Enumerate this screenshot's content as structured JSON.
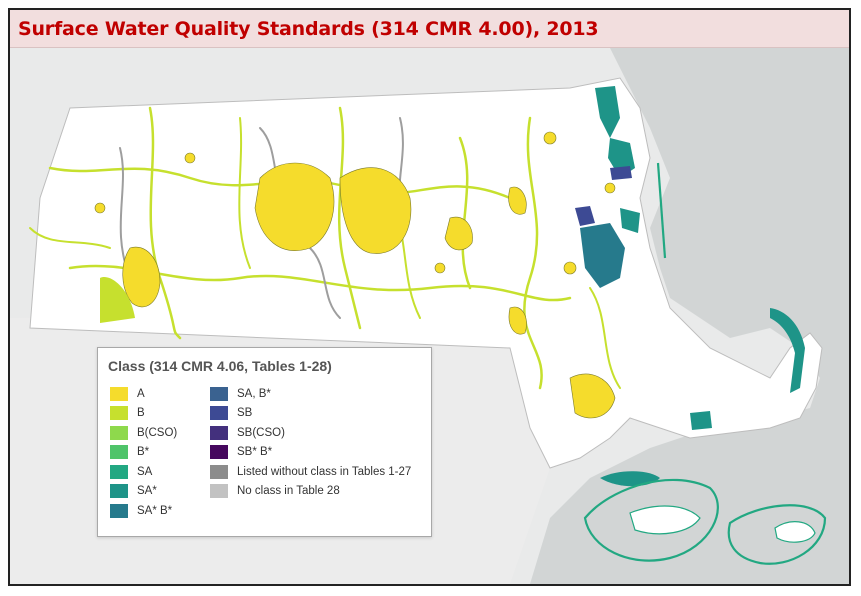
{
  "title": "Surface Water Quality Standards (314 CMR 4.00), 2013",
  "colors": {
    "title_text": "#c00000",
    "title_bg": "#f2dede",
    "land": "#f7f7f7",
    "state": "#ffffff",
    "ocean": "#d2d5d5",
    "neighbor": "#ececec"
  },
  "legend": {
    "title": "Class (314 CMR 4.06, Tables 1-28)",
    "col1": [
      {
        "label": "A",
        "color": "#f5dc2c"
      },
      {
        "label": "B",
        "color": "#c6e02e"
      },
      {
        "label": "B(CSO)",
        "color": "#8ed94c"
      },
      {
        "label": "B*",
        "color": "#4fc46a"
      },
      {
        "label": "SA",
        "color": "#22a882"
      },
      {
        "label": "SA*",
        "color": "#1e9488"
      },
      {
        "label": "SA* B*",
        "color": "#267a8c"
      }
    ],
    "col2": [
      {
        "label": "SA, B*",
        "color": "#3a6290"
      },
      {
        "label": "SB",
        "color": "#3d4a94"
      },
      {
        "label": "SB(CSO)",
        "color": "#43307d"
      },
      {
        "label": "SB* B*",
        "color": "#46085e"
      },
      {
        "label": "Listed without class in Tables 1-27",
        "color": "#8c8c8c"
      },
      {
        "label": "No class in Table 28",
        "color": "#c2c2c2"
      }
    ]
  }
}
